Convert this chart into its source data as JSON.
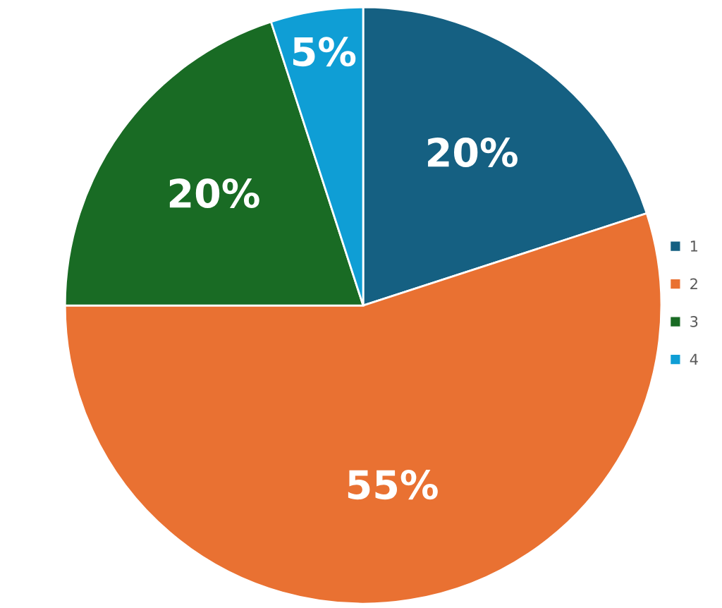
{
  "chart_data": {
    "type": "pie",
    "categories": [
      "1",
      "2",
      "3",
      "4"
    ],
    "values": [
      20,
      55,
      20,
      5
    ],
    "colors": [
      "#156082",
      "#e97132",
      "#196b24",
      "#0f9ed5"
    ],
    "value_labels": [
      "20%",
      "55%",
      "20%",
      "5%"
    ],
    "legend": "right"
  }
}
